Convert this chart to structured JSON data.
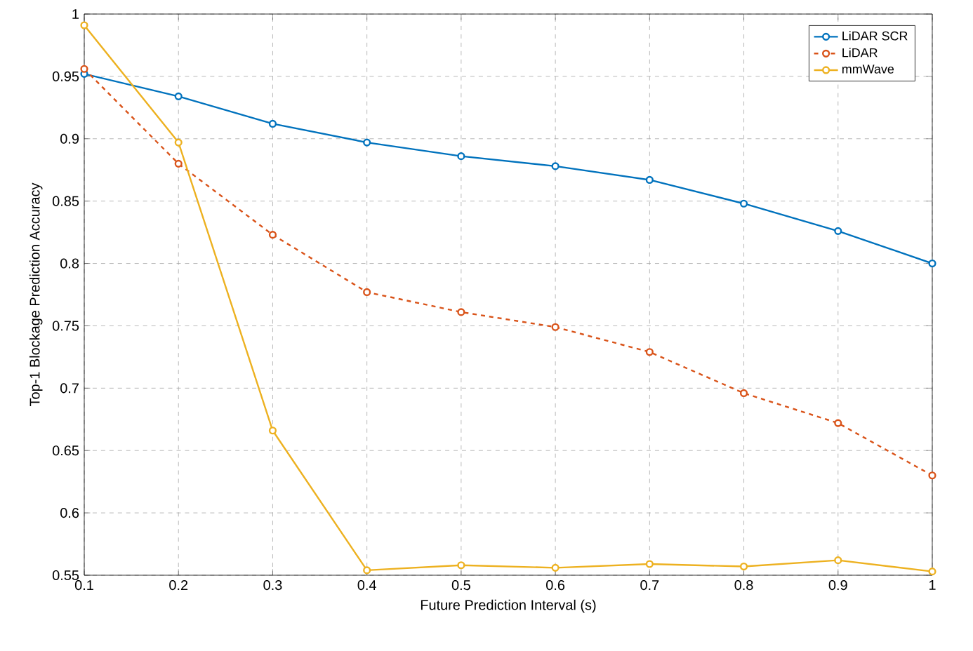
{
  "chart_data": {
    "type": "line",
    "xlabel": "Future Prediction Interval (s)",
    "ylabel": "Top-1 Blockage Prediction Accuracy",
    "x": [
      0.1,
      0.2,
      0.3,
      0.4,
      0.5,
      0.6,
      0.7,
      0.8,
      0.9,
      1
    ],
    "series": [
      {
        "name": "LiDAR SCR",
        "color": "#0072bd",
        "line_style": "solid",
        "values": [
          0.952,
          0.934,
          0.912,
          0.897,
          0.886,
          0.878,
          0.867,
          0.848,
          0.826,
          0.8
        ]
      },
      {
        "name": "LiDAR",
        "color": "#d95319",
        "line_style": "dashed",
        "values": [
          0.956,
          0.88,
          0.823,
          0.777,
          0.761,
          0.749,
          0.729,
          0.696,
          0.672,
          0.63
        ]
      },
      {
        "name": "mmWave",
        "color": "#edb120",
        "line_style": "solid",
        "values": [
          0.991,
          0.897,
          0.666,
          0.554,
          0.558,
          0.556,
          0.559,
          0.557,
          0.562,
          0.553
        ]
      }
    ],
    "xlim": [
      0.1,
      1
    ],
    "ylim": [
      0.55,
      1
    ],
    "xticks": [
      0.1,
      0.2,
      0.3,
      0.4,
      0.5,
      0.6,
      0.7,
      0.8,
      0.9,
      1
    ],
    "yticks": [
      0.55,
      0.6,
      0.65,
      0.7,
      0.75,
      0.8,
      0.85,
      0.9,
      0.95,
      1
    ],
    "grid": true,
    "legend": "top right",
    "marker": "circle"
  }
}
